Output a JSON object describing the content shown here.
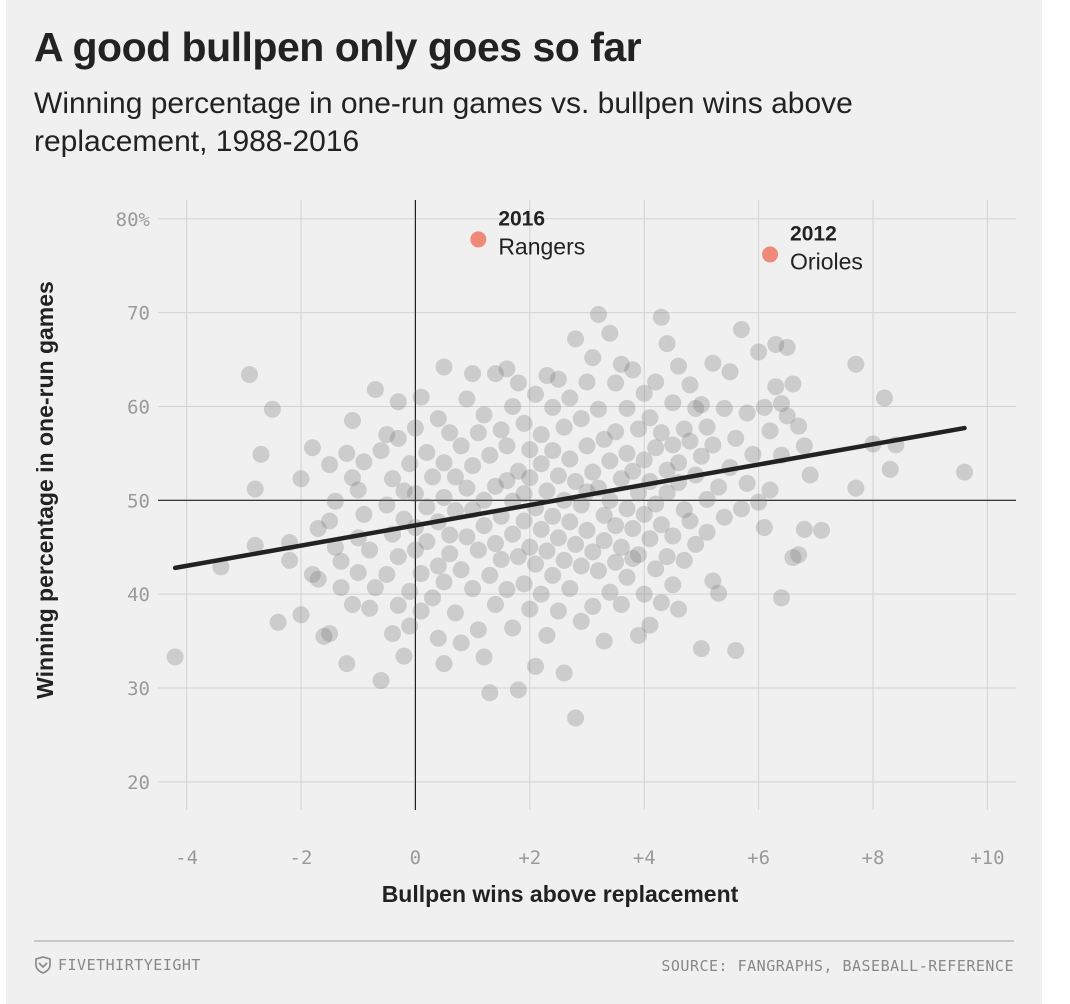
{
  "header": {
    "title": "A good bullpen only goes so far",
    "subtitle": "Winning percentage in one-run games vs. bullpen wins above replacement, 1988-2016"
  },
  "footer": {
    "brand": "FIVETHIRTYEIGHT",
    "brand_icon": "fivethirtyeight-logo-icon",
    "source": "SOURCE: FANGRAPHS, BASEBALL-REFERENCE"
  },
  "colors": {
    "background": "#f0f0f0",
    "points": "#6e6e6e",
    "highlight": "#f08a78",
    "trend": "#222222",
    "grid": "#d2d2d2"
  },
  "chart_data": {
    "type": "scatter",
    "xlabel": "Bullpen wins above replacement",
    "ylabel": "Winning percentage in one-run games",
    "xlim": [
      -4.5,
      10.5
    ],
    "ylim": [
      17,
      82
    ],
    "x_ticks": [
      -4,
      -2,
      0,
      2,
      4,
      6,
      8,
      10
    ],
    "x_tick_labels": [
      "-4",
      "-2",
      "0",
      "+2",
      "+4",
      "+6",
      "+8",
      "+10"
    ],
    "y_ticks": [
      20,
      30,
      40,
      50,
      60,
      70,
      80
    ],
    "y_tick_labels": [
      "20",
      "30",
      "40",
      "50",
      "60",
      "70",
      "80%"
    ],
    "grid": true,
    "trend_line": {
      "x": [
        -4.2,
        9.6
      ],
      "y": [
        42.8,
        57.7
      ]
    },
    "highlights": [
      {
        "year": "2016",
        "team": "Rangers",
        "x": 1.1,
        "y": 77.8
      },
      {
        "year": "2012",
        "team": "Orioles",
        "x": 6.2,
        "y": 76.2
      }
    ],
    "points": [
      [
        -4.2,
        33.3
      ],
      [
        -3.4,
        42.9
      ],
      [
        -2.9,
        63.4
      ],
      [
        -2.8,
        51.2
      ],
      [
        -2.8,
        45.2
      ],
      [
        -2.7,
        54.9
      ],
      [
        -2.5,
        59.7
      ],
      [
        -2.4,
        37.0
      ],
      [
        -2.2,
        45.5
      ],
      [
        -2.2,
        43.6
      ],
      [
        -2.0,
        37.8
      ],
      [
        -2.0,
        52.3
      ],
      [
        -1.8,
        55.6
      ],
      [
        -1.8,
        42.1
      ],
      [
        -1.7,
        41.6
      ],
      [
        -1.7,
        47.0
      ],
      [
        -1.6,
        35.5
      ],
      [
        -1.5,
        35.8
      ],
      [
        -1.5,
        53.8
      ],
      [
        -1.5,
        47.8
      ],
      [
        -1.4,
        49.9
      ],
      [
        -1.4,
        45.0
      ],
      [
        -1.3,
        43.5
      ],
      [
        -1.3,
        40.7
      ],
      [
        -1.2,
        55.0
      ],
      [
        -1.2,
        32.6
      ],
      [
        -1.1,
        58.5
      ],
      [
        -1.1,
        52.4
      ],
      [
        -1.1,
        38.9
      ],
      [
        -1.0,
        46.0
      ],
      [
        -1.0,
        42.3
      ],
      [
        -1.0,
        51.1
      ],
      [
        -0.9,
        48.5
      ],
      [
        -0.9,
        54.1
      ],
      [
        -0.8,
        44.7
      ],
      [
        -0.8,
        38.5
      ],
      [
        -0.7,
        40.7
      ],
      [
        -0.7,
        61.8
      ],
      [
        -0.6,
        55.3
      ],
      [
        -0.6,
        30.8
      ],
      [
        -0.5,
        57.0
      ],
      [
        -0.5,
        49.5
      ],
      [
        -0.5,
        42.1
      ],
      [
        -0.4,
        52.3
      ],
      [
        -0.4,
        46.4
      ],
      [
        -0.4,
        35.8
      ],
      [
        -0.3,
        60.5
      ],
      [
        -0.3,
        56.6
      ],
      [
        -0.3,
        44.0
      ],
      [
        -0.3,
        38.8
      ],
      [
        -0.2,
        51.0
      ],
      [
        -0.2,
        48.0
      ],
      [
        -0.2,
        33.4
      ],
      [
        -0.1,
        53.9
      ],
      [
        -0.1,
        40.3
      ],
      [
        -0.1,
        36.6
      ],
      [
        0.0,
        57.7
      ],
      [
        0.0,
        47.1
      ],
      [
        0.0,
        44.7
      ],
      [
        0.0,
        50.7
      ],
      [
        0.1,
        61.0
      ],
      [
        0.1,
        42.2
      ],
      [
        0.1,
        38.2
      ],
      [
        0.2,
        55.1
      ],
      [
        0.2,
        49.3
      ],
      [
        0.2,
        45.6
      ],
      [
        0.3,
        52.5
      ],
      [
        0.3,
        39.6
      ],
      [
        0.4,
        58.7
      ],
      [
        0.4,
        47.7
      ],
      [
        0.4,
        43.0
      ],
      [
        0.4,
        35.3
      ],
      [
        0.5,
        64.2
      ],
      [
        0.5,
        54.0
      ],
      [
        0.5,
        50.3
      ],
      [
        0.5,
        41.3
      ],
      [
        0.5,
        32.6
      ],
      [
        0.6,
        57.2
      ],
      [
        0.6,
        46.3
      ],
      [
        0.6,
        44.3
      ],
      [
        0.7,
        52.5
      ],
      [
        0.7,
        48.9
      ],
      [
        0.7,
        38.0
      ],
      [
        0.8,
        55.8
      ],
      [
        0.8,
        42.6
      ],
      [
        0.8,
        34.8
      ],
      [
        0.9,
        60.8
      ],
      [
        0.9,
        51.3
      ],
      [
        0.9,
        46.1
      ],
      [
        1.0,
        63.5
      ],
      [
        1.0,
        53.7
      ],
      [
        1.0,
        49.0
      ],
      [
        1.0,
        40.6
      ],
      [
        1.1,
        57.2
      ],
      [
        1.1,
        44.7
      ],
      [
        1.1,
        36.2
      ],
      [
        1.2,
        59.1
      ],
      [
        1.2,
        50.0
      ],
      [
        1.2,
        47.3
      ],
      [
        1.2,
        33.3
      ],
      [
        1.3,
        54.8
      ],
      [
        1.3,
        42.0
      ],
      [
        1.3,
        29.5
      ],
      [
        1.4,
        63.5
      ],
      [
        1.4,
        51.5
      ],
      [
        1.4,
        45.4
      ],
      [
        1.4,
        38.9
      ],
      [
        1.5,
        57.5
      ],
      [
        1.5,
        48.3
      ],
      [
        1.5,
        43.7
      ],
      [
        1.6,
        64.0
      ],
      [
        1.6,
        55.8
      ],
      [
        1.6,
        52.1
      ],
      [
        1.6,
        40.5
      ],
      [
        1.7,
        60.0
      ],
      [
        1.7,
        49.9
      ],
      [
        1.7,
        46.4
      ],
      [
        1.7,
        36.4
      ],
      [
        1.8,
        62.5
      ],
      [
        1.8,
        53.1
      ],
      [
        1.8,
        44.0
      ],
      [
        1.8,
        29.8
      ],
      [
        1.9,
        58.2
      ],
      [
        1.9,
        50.7
      ],
      [
        1.9,
        47.8
      ],
      [
        1.9,
        41.1
      ],
      [
        2.0,
        55.4
      ],
      [
        2.0,
        52.4
      ],
      [
        2.0,
        45.0
      ],
      [
        2.0,
        38.4
      ],
      [
        2.1,
        61.3
      ],
      [
        2.1,
        49.2
      ],
      [
        2.1,
        43.2
      ],
      [
        2.1,
        32.3
      ],
      [
        2.2,
        57.0
      ],
      [
        2.2,
        53.9
      ],
      [
        2.2,
        46.9
      ],
      [
        2.2,
        40.0
      ],
      [
        2.3,
        63.3
      ],
      [
        2.3,
        51.0
      ],
      [
        2.3,
        44.6
      ],
      [
        2.3,
        35.6
      ],
      [
        2.4,
        59.9
      ],
      [
        2.4,
        55.3
      ],
      [
        2.4,
        48.3
      ],
      [
        2.4,
        42.0
      ],
      [
        2.5,
        62.9
      ],
      [
        2.5,
        52.6
      ],
      [
        2.5,
        46.0
      ],
      [
        2.5,
        38.2
      ],
      [
        2.6,
        57.8
      ],
      [
        2.6,
        50.0
      ],
      [
        2.6,
        43.6
      ],
      [
        2.6,
        31.6
      ],
      [
        2.7,
        60.9
      ],
      [
        2.7,
        54.4
      ],
      [
        2.7,
        47.7
      ],
      [
        2.7,
        40.6
      ],
      [
        2.8,
        67.2
      ],
      [
        2.8,
        52.0
      ],
      [
        2.8,
        45.3
      ],
      [
        2.8,
        26.8
      ],
      [
        2.9,
        58.7
      ],
      [
        2.9,
        49.5
      ],
      [
        2.9,
        43.0
      ],
      [
        2.9,
        37.1
      ],
      [
        3.0,
        62.6
      ],
      [
        3.0,
        55.8
      ],
      [
        3.0,
        50.9
      ],
      [
        3.0,
        46.8
      ],
      [
        3.1,
        65.2
      ],
      [
        3.1,
        53.0
      ],
      [
        3.1,
        44.5
      ],
      [
        3.1,
        38.7
      ],
      [
        3.2,
        69.8
      ],
      [
        3.2,
        59.7
      ],
      [
        3.2,
        51.3
      ],
      [
        3.2,
        42.5
      ],
      [
        3.3,
        56.5
      ],
      [
        3.3,
        48.4
      ],
      [
        3.3,
        45.7
      ],
      [
        3.3,
        35.0
      ],
      [
        3.4,
        67.8
      ],
      [
        3.4,
        54.2
      ],
      [
        3.4,
        50.0
      ],
      [
        3.4,
        40.2
      ],
      [
        3.5,
        62.5
      ],
      [
        3.5,
        57.3
      ],
      [
        3.5,
        47.3
      ],
      [
        3.5,
        43.4
      ],
      [
        3.6,
        64.5
      ],
      [
        3.6,
        52.3
      ],
      [
        3.6,
        45.0
      ],
      [
        3.6,
        38.9
      ],
      [
        3.7,
        59.8
      ],
      [
        3.7,
        55.0
      ],
      [
        3.7,
        49.1
      ],
      [
        3.7,
        41.8
      ],
      [
        3.8,
        63.9
      ],
      [
        3.8,
        53.1
      ],
      [
        3.8,
        47.0
      ],
      [
        3.8,
        43.8
      ],
      [
        3.9,
        57.6
      ],
      [
        3.9,
        50.8
      ],
      [
        3.9,
        44.2
      ],
      [
        3.9,
        35.6
      ],
      [
        4.0,
        61.4
      ],
      [
        4.0,
        54.3
      ],
      [
        4.0,
        48.5
      ],
      [
        4.0,
        40.0
      ],
      [
        4.1,
        58.8
      ],
      [
        4.1,
        52.0
      ],
      [
        4.1,
        45.9
      ],
      [
        4.1,
        36.7
      ],
      [
        4.2,
        62.6
      ],
      [
        4.2,
        55.6
      ],
      [
        4.2,
        49.6
      ],
      [
        4.2,
        42.7
      ],
      [
        4.3,
        69.5
      ],
      [
        4.3,
        57.2
      ],
      [
        4.3,
        47.4
      ],
      [
        4.3,
        39.1
      ],
      [
        4.4,
        66.7
      ],
      [
        4.4,
        53.2
      ],
      [
        4.4,
        50.8
      ],
      [
        4.4,
        44.0
      ],
      [
        4.5,
        60.4
      ],
      [
        4.5,
        55.9
      ],
      [
        4.5,
        46.2
      ],
      [
        4.5,
        41.0
      ],
      [
        4.6,
        64.3
      ],
      [
        4.6,
        54.0
      ],
      [
        4.6,
        51.9
      ],
      [
        4.6,
        38.4
      ],
      [
        4.7,
        57.6
      ],
      [
        4.7,
        49.0
      ],
      [
        4.7,
        43.6
      ],
      [
        4.8,
        62.3
      ],
      [
        4.8,
        56.3
      ],
      [
        4.8,
        47.8
      ],
      [
        4.9,
        59.8
      ],
      [
        4.9,
        52.7
      ],
      [
        4.9,
        45.3
      ],
      [
        5.0,
        60.2
      ],
      [
        5.0,
        54.7
      ],
      [
        5.0,
        34.2
      ],
      [
        5.1,
        57.8
      ],
      [
        5.1,
        50.1
      ],
      [
        5.1,
        46.6
      ],
      [
        5.2,
        64.6
      ],
      [
        5.2,
        55.9
      ],
      [
        5.2,
        41.4
      ],
      [
        5.3,
        51.4
      ],
      [
        5.3,
        40.1
      ],
      [
        5.4,
        59.8
      ],
      [
        5.4,
        48.2
      ],
      [
        5.5,
        63.7
      ],
      [
        5.5,
        53.5
      ],
      [
        5.6,
        56.6
      ],
      [
        5.6,
        34.0
      ],
      [
        5.7,
        68.2
      ],
      [
        5.7,
        49.1
      ],
      [
        5.8,
        59.3
      ],
      [
        5.8,
        51.8
      ],
      [
        5.9,
        54.9
      ],
      [
        6.0,
        65.8
      ],
      [
        6.0,
        49.8
      ],
      [
        6.1,
        59.9
      ],
      [
        6.1,
        47.1
      ],
      [
        6.2,
        57.4
      ],
      [
        6.2,
        51.1
      ],
      [
        6.3,
        66.6
      ],
      [
        6.3,
        62.1
      ],
      [
        6.4,
        60.3
      ],
      [
        6.4,
        54.8
      ],
      [
        6.4,
        39.6
      ],
      [
        6.5,
        66.3
      ],
      [
        6.5,
        59.0
      ],
      [
        6.6,
        62.4
      ],
      [
        6.6,
        43.9
      ],
      [
        6.7,
        57.9
      ],
      [
        6.7,
        44.2
      ],
      [
        6.8,
        55.8
      ],
      [
        6.8,
        46.9
      ],
      [
        6.9,
        52.7
      ],
      [
        7.1,
        46.8
      ],
      [
        7.7,
        64.5
      ],
      [
        7.7,
        51.3
      ],
      [
        8.0,
        56.0
      ],
      [
        8.2,
        60.9
      ],
      [
        8.3,
        53.3
      ],
      [
        8.4,
        55.9
      ],
      [
        9.6,
        53.0
      ]
    ]
  }
}
